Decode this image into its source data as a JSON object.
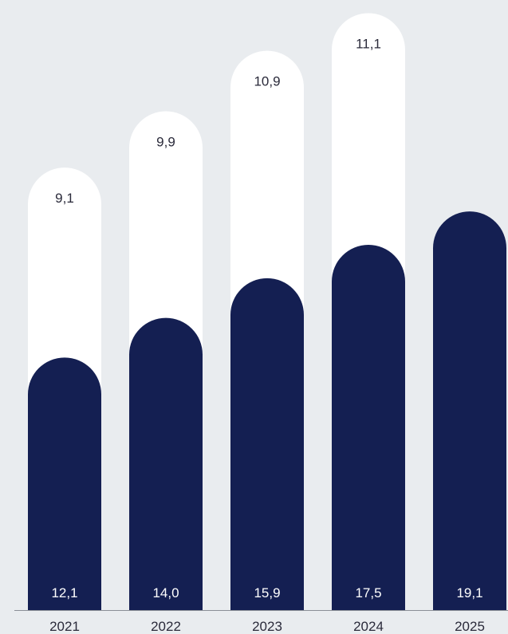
{
  "chart_data": {
    "type": "bar",
    "stacked": true,
    "categories": [
      "2021",
      "2022",
      "2023",
      "2024",
      "2025"
    ],
    "series": [
      {
        "color": "#141f52",
        "values": [
          12.1,
          14.0,
          15.9,
          17.5,
          19.1
        ],
        "labels": [
          "12,1",
          "14,0",
          "15,9",
          "17,5",
          "19,1"
        ]
      },
      {
        "color": "#ffffff",
        "values": [
          9.1,
          9.9,
          10.9,
          11.1,
          null
        ],
        "labels": [
          "9,1",
          "9,9",
          "10,9",
          "11,1",
          null
        ]
      }
    ],
    "ylim": [
      0,
      29
    ],
    "grid": false,
    "legend": "none",
    "colors": {
      "background": "#e9ecef",
      "axis": "#8a8f96",
      "text_dark": "#2a2a3a",
      "text_light": "#ffffff"
    }
  }
}
